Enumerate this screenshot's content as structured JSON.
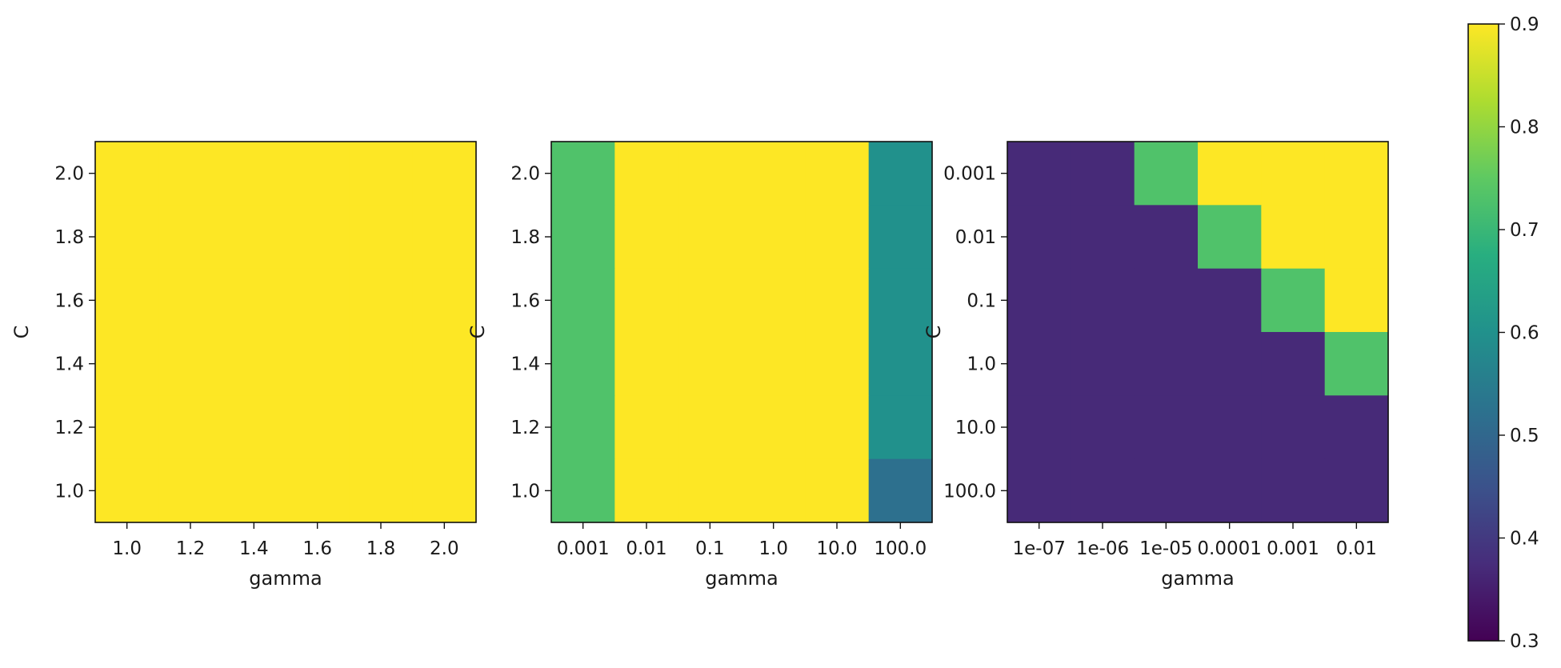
{
  "chart_data": [
    {
      "type": "heatmap",
      "xlabel": "gamma",
      "ylabel": "C",
      "x_ticklabels": [
        "1.0",
        "1.2",
        "1.4",
        "1.6",
        "1.8",
        "2.0"
      ],
      "y_ticklabels": [
        "1.0",
        "1.2",
        "1.4",
        "1.6",
        "1.8",
        "2.0"
      ],
      "values": [
        [
          0.9,
          0.9,
          0.9,
          0.9,
          0.9,
          0.9
        ],
        [
          0.9,
          0.9,
          0.9,
          0.9,
          0.9,
          0.9
        ],
        [
          0.9,
          0.9,
          0.9,
          0.9,
          0.9,
          0.9
        ],
        [
          0.9,
          0.9,
          0.9,
          0.9,
          0.9,
          0.9
        ],
        [
          0.9,
          0.9,
          0.9,
          0.9,
          0.9,
          0.9
        ],
        [
          0.9,
          0.9,
          0.9,
          0.9,
          0.9,
          0.9
        ]
      ]
    },
    {
      "type": "heatmap",
      "xlabel": "gamma",
      "ylabel": "C",
      "x_ticklabels": [
        "0.001",
        "0.01",
        "0.1",
        "1.0",
        "10.0",
        "100.0"
      ],
      "y_ticklabels": [
        "1.0",
        "1.2",
        "1.4",
        "1.6",
        "1.8",
        "2.0"
      ],
      "values": [
        [
          0.73,
          0.9,
          0.9,
          0.9,
          0.9,
          0.6
        ],
        [
          0.73,
          0.9,
          0.9,
          0.9,
          0.9,
          0.6
        ],
        [
          0.73,
          0.9,
          0.9,
          0.9,
          0.9,
          0.6
        ],
        [
          0.73,
          0.9,
          0.9,
          0.9,
          0.9,
          0.6
        ],
        [
          0.73,
          0.9,
          0.9,
          0.9,
          0.9,
          0.6
        ],
        [
          0.73,
          0.9,
          0.9,
          0.9,
          0.9,
          0.52
        ]
      ]
    },
    {
      "type": "heatmap",
      "xlabel": "gamma",
      "ylabel": "C",
      "x_ticklabels": [
        "1e-07",
        "1e-06",
        "1e-05",
        "0.0001",
        "0.001",
        "0.01"
      ],
      "y_ticklabels": [
        "100.0",
        "10.0",
        "1.0",
        "0.1",
        "0.01",
        "0.001"
      ],
      "values": [
        [
          0.37,
          0.37,
          0.73,
          0.9,
          0.9,
          0.9
        ],
        [
          0.37,
          0.37,
          0.37,
          0.73,
          0.9,
          0.9
        ],
        [
          0.37,
          0.37,
          0.37,
          0.37,
          0.73,
          0.9
        ],
        [
          0.37,
          0.37,
          0.37,
          0.37,
          0.37,
          0.73
        ],
        [
          0.37,
          0.37,
          0.37,
          0.37,
          0.37,
          0.37
        ],
        [
          0.37,
          0.37,
          0.37,
          0.37,
          0.37,
          0.37
        ]
      ]
    }
  ],
  "colorbar": {
    "colormap": "viridis",
    "vmin": 0.3,
    "vmax": 0.9,
    "ticks": [
      "0.3",
      "0.4",
      "0.5",
      "0.6",
      "0.7",
      "0.8",
      "0.9"
    ]
  }
}
